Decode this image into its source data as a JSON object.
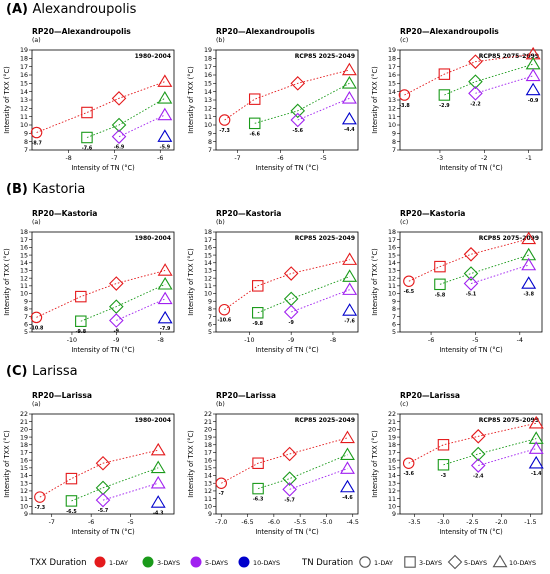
{
  "sections": [
    {
      "letter": "(A)",
      "name": "Alexandroupolis"
    },
    {
      "letter": "(B)",
      "name": "Kastoria"
    },
    {
      "letter": "(C)",
      "name": "Larissa"
    }
  ],
  "legend": {
    "txx_title": "TXX Duration",
    "txx_items": [
      {
        "label": "1-DAY",
        "color": "#e41a1c"
      },
      {
        "label": "3-DAYS",
        "color": "#1a9a1a"
      },
      {
        "label": "5-DAYS",
        "color": "#a020f0"
      },
      {
        "label": "10-DAYS",
        "color": "#0000cc"
      }
    ],
    "tn_title": "TN Duration",
    "tn_items": [
      {
        "label": "1-DAY",
        "shape": "circle"
      },
      {
        "label": "3-DAYS",
        "shape": "square"
      },
      {
        "label": "5-DAYS",
        "shape": "diamond"
      },
      {
        "label": "10-DAYS",
        "shape": "triangle"
      }
    ]
  },
  "chart_data": [
    {
      "type": "scatter",
      "title": "RP20—Alexandroupolis",
      "sublabel": "(a)",
      "period": "1980–2004",
      "xlabel": "Intensity of TN (°C)",
      "ylabel": "Intensity of TXX (°C)",
      "xlim": [
        -8.8,
        -5.7
      ],
      "ylim": [
        7,
        19
      ],
      "xticks": [
        -8,
        -7,
        -6
      ],
      "yticks": [
        7,
        8,
        9,
        10,
        11,
        12,
        13,
        14,
        15,
        16,
        17,
        18,
        19
      ],
      "tn_values": [
        -8.7,
        -7.6,
        -6.9,
        -5.9
      ],
      "series": [
        {
          "name": "1-DAY",
          "color": "#e41a1c",
          "values": [
            9.1,
            11.5,
            13.2,
            15.2
          ]
        },
        {
          "name": "3-DAYS",
          "color": "#1a9a1a",
          "values": [
            null,
            8.5,
            10.0,
            13.2
          ]
        },
        {
          "name": "5-DAYS",
          "color": "#a020f0",
          "values": [
            null,
            null,
            8.6,
            11.2
          ]
        },
        {
          "name": "10-DAYS",
          "color": "#0000cc",
          "values": [
            null,
            null,
            null,
            8.6
          ]
        }
      ]
    },
    {
      "type": "scatter",
      "title": "RP20—Alexandroupolis",
      "sublabel": "(b)",
      "period": "RCP85 2025–2049",
      "xlabel": "Intensity of TN (°C)",
      "ylabel": "Intensity of TXX (°C)",
      "xlim": [
        -7.5,
        -4.2
      ],
      "ylim": [
        7,
        19
      ],
      "xticks": [
        -7,
        -6,
        -5
      ],
      "yticks": [
        7,
        8,
        9,
        10,
        11,
        12,
        13,
        14,
        15,
        16,
        17,
        18,
        19
      ],
      "tn_values": [
        -7.3,
        -6.6,
        -5.6,
        -4.4
      ],
      "series": [
        {
          "name": "1-DAY",
          "color": "#e41a1c",
          "values": [
            10.6,
            13.1,
            15.0,
            16.6
          ]
        },
        {
          "name": "3-DAYS",
          "color": "#1a9a1a",
          "values": [
            null,
            10.2,
            11.7,
            15.0
          ]
        },
        {
          "name": "5-DAYS",
          "color": "#a020f0",
          "values": [
            null,
            null,
            10.6,
            13.2
          ]
        },
        {
          "name": "10-DAYS",
          "color": "#0000cc",
          "values": [
            null,
            null,
            null,
            10.7
          ]
        }
      ]
    },
    {
      "type": "scatter",
      "title": "RP20—Alexandroupolis",
      "sublabel": "(c)",
      "period": "RCP85 2075–2099",
      "xlabel": "Intensity of TN (°C)",
      "ylabel": "Intensity of TXX (°C)",
      "xlim": [
        -3.9,
        -0.7
      ],
      "ylim": [
        7,
        19
      ],
      "xticks": [
        -3,
        -2,
        -1
      ],
      "yticks": [
        7,
        8,
        9,
        10,
        11,
        12,
        13,
        14,
        15,
        16,
        17,
        18,
        19
      ],
      "tn_values": [
        -3.8,
        -2.9,
        -2.2,
        -0.9
      ],
      "series": [
        {
          "name": "1-DAY",
          "color": "#e41a1c",
          "values": [
            13.6,
            16.1,
            17.6,
            18.5
          ]
        },
        {
          "name": "3-DAYS",
          "color": "#1a9a1a",
          "values": [
            null,
            13.6,
            15.2,
            17.3
          ]
        },
        {
          "name": "5-DAYS",
          "color": "#a020f0",
          "values": [
            null,
            null,
            13.8,
            15.9
          ]
        },
        {
          "name": "10-DAYS",
          "color": "#0000cc",
          "values": [
            null,
            null,
            null,
            14.2
          ]
        }
      ]
    },
    {
      "type": "scatter",
      "title": "RP20—Kastoria",
      "sublabel": "(a)",
      "period": "1980–2004",
      "xlabel": "Intensity of TN (°C)",
      "ylabel": "Intensity of TXX (°C)",
      "xlim": [
        -10.9,
        -7.7
      ],
      "ylim": [
        5,
        18
      ],
      "xticks": [
        -10,
        -9,
        -8
      ],
      "yticks": [
        5,
        6,
        7,
        8,
        9,
        10,
        11,
        12,
        13,
        14,
        15,
        16,
        17,
        18
      ],
      "tn_values": [
        -10.8,
        -9.8,
        -9,
        -7.9
      ],
      "series": [
        {
          "name": "1-DAY",
          "color": "#e41a1c",
          "values": [
            6.9,
            9.6,
            11.3,
            13.0
          ]
        },
        {
          "name": "3-DAYS",
          "color": "#1a9a1a",
          "values": [
            null,
            6.4,
            8.3,
            11.2
          ]
        },
        {
          "name": "5-DAYS",
          "color": "#a020f0",
          "values": [
            null,
            null,
            6.5,
            9.3
          ]
        },
        {
          "name": "10-DAYS",
          "color": "#0000cc",
          "values": [
            null,
            null,
            null,
            6.8
          ]
        }
      ]
    },
    {
      "type": "scatter",
      "title": "RP20—Kastoria",
      "sublabel": "(b)",
      "period": "RCP85 2025–2049",
      "xlabel": "Intensity of TN (°C)",
      "ylabel": "Intensity of TXX (°C)",
      "xlim": [
        -10.8,
        -7.4
      ],
      "ylim": [
        5,
        18
      ],
      "xticks": [
        -10,
        -9,
        -8
      ],
      "yticks": [
        5,
        6,
        7,
        8,
        9,
        10,
        11,
        12,
        13,
        14,
        15,
        16,
        17,
        18
      ],
      "tn_values": [
        -10.6,
        -9.8,
        -9,
        -7.6
      ],
      "series": [
        {
          "name": "1-DAY",
          "color": "#e41a1c",
          "values": [
            7.9,
            11.0,
            12.6,
            14.4
          ]
        },
        {
          "name": "3-DAYS",
          "color": "#1a9a1a",
          "values": [
            null,
            7.5,
            9.3,
            12.2
          ]
        },
        {
          "name": "5-DAYS",
          "color": "#a020f0",
          "values": [
            null,
            null,
            7.6,
            10.5
          ]
        },
        {
          "name": "10-DAYS",
          "color": "#0000cc",
          "values": [
            null,
            null,
            null,
            7.8
          ]
        }
      ]
    },
    {
      "type": "scatter",
      "title": "RP20—Kastoria",
      "sublabel": "(c)",
      "period": "RCP85 2075–2099",
      "xlabel": "Intensity of TN (°C)",
      "ylabel": "Intensity of TXX (°C)",
      "xlim": [
        -6.7,
        -3.5
      ],
      "ylim": [
        5,
        18
      ],
      "xticks": [
        -6,
        -5,
        -4
      ],
      "yticks": [
        5,
        6,
        7,
        8,
        9,
        10,
        11,
        12,
        13,
        14,
        15,
        16,
        17,
        18
      ],
      "tn_values": [
        -6.5,
        -5.8,
        -5.1,
        -3.8
      ],
      "series": [
        {
          "name": "1-DAY",
          "color": "#e41a1c",
          "values": [
            11.6,
            13.5,
            15.1,
            17.1
          ]
        },
        {
          "name": "3-DAYS",
          "color": "#1a9a1a",
          "values": [
            null,
            11.2,
            12.6,
            15.0
          ]
        },
        {
          "name": "5-DAYS",
          "color": "#a020f0",
          "values": [
            null,
            null,
            11.3,
            13.7
          ]
        },
        {
          "name": "10-DAYS",
          "color": "#0000cc",
          "values": [
            null,
            null,
            null,
            11.3
          ]
        }
      ]
    },
    {
      "type": "scatter",
      "title": "RP20—Larissa",
      "sublabel": "(a)",
      "period": "1980–2004",
      "xlabel": "Intensity of TN (°C)",
      "ylabel": "Intensity of TXX (°C)",
      "xlim": [
        -7.5,
        -3.9
      ],
      "ylim": [
        9,
        22
      ],
      "xticks": [
        -7,
        -6,
        -5
      ],
      "yticks": [
        9,
        10,
        11,
        12,
        13,
        14,
        15,
        16,
        17,
        18,
        19,
        20,
        21,
        22
      ],
      "tn_values": [
        -7.3,
        -6.5,
        -5.7,
        -4.3
      ],
      "series": [
        {
          "name": "1-DAY",
          "color": "#e41a1c",
          "values": [
            11.2,
            13.6,
            15.6,
            17.3
          ]
        },
        {
          "name": "3-DAYS",
          "color": "#1a9a1a",
          "values": [
            null,
            10.7,
            12.4,
            15.0
          ]
        },
        {
          "name": "5-DAYS",
          "color": "#a020f0",
          "values": [
            null,
            null,
            10.8,
            13.0
          ]
        },
        {
          "name": "10-DAYS",
          "color": "#0000cc",
          "values": [
            null,
            null,
            null,
            10.5
          ]
        }
      ]
    },
    {
      "type": "scatter",
      "title": "RP20—Larissa",
      "sublabel": "(b)",
      "period": "RCP85 2025–2049",
      "xlabel": "Intensity of TN (°C)",
      "ylabel": "Intensity of TXX (°C)",
      "xlim": [
        -7.1,
        -4.4
      ],
      "ylim": [
        9,
        22
      ],
      "xticks": [
        -7.0,
        -6.5,
        -6.0,
        -5.5,
        -5.0,
        -4.5
      ],
      "yticks": [
        9,
        10,
        11,
        12,
        13,
        14,
        15,
        16,
        17,
        18,
        19,
        20,
        21,
        22
      ],
      "xtick_labels": [
        "-7.0",
        "-6.5",
        "-6.0",
        "-5.5",
        "-5.0",
        "-4.5"
      ],
      "tn_values": [
        -7,
        -6.3,
        -5.7,
        -4.6
      ],
      "series": [
        {
          "name": "1-DAY",
          "color": "#e41a1c",
          "values": [
            13.0,
            15.6,
            16.8,
            18.9
          ]
        },
        {
          "name": "3-DAYS",
          "color": "#1a9a1a",
          "values": [
            null,
            12.3,
            13.6,
            16.7
          ]
        },
        {
          "name": "5-DAYS",
          "color": "#a020f0",
          "values": [
            null,
            null,
            12.2,
            14.9
          ]
        },
        {
          "name": "10-DAYS",
          "color": "#0000cc",
          "values": [
            null,
            null,
            null,
            12.5
          ]
        }
      ]
    },
    {
      "type": "scatter",
      "title": "RP20—Larissa",
      "sublabel": "(c)",
      "period": "RCP85 2075–2099",
      "xlabel": "Intensity of TN (°C)",
      "ylabel": "Intensity of TXX (°C)",
      "xlim": [
        -3.75,
        -1.3
      ],
      "ylim": [
        9,
        22
      ],
      "xticks": [
        -3.5,
        -3.0,
        -2.5,
        -2.0,
        -1.5
      ],
      "yticks": [
        9,
        10,
        11,
        12,
        13,
        14,
        15,
        16,
        17,
        18,
        19,
        20,
        21,
        22
      ],
      "xtick_labels": [
        "-3.5",
        "-3.0",
        "-2.5",
        "-2.0",
        "-1.5"
      ],
      "tn_values": [
        -3.6,
        -3,
        -2.4,
        -1.4
      ],
      "series": [
        {
          "name": "1-DAY",
          "color": "#e41a1c",
          "values": [
            15.6,
            18.0,
            19.1,
            20.8
          ]
        },
        {
          "name": "3-DAYS",
          "color": "#1a9a1a",
          "values": [
            null,
            15.4,
            16.8,
            18.8
          ]
        },
        {
          "name": "5-DAYS",
          "color": "#a020f0",
          "values": [
            null,
            null,
            15.3,
            17.5
          ]
        },
        {
          "name": "10-DAYS",
          "color": "#0000cc",
          "values": [
            null,
            null,
            null,
            15.6
          ]
        }
      ]
    }
  ]
}
